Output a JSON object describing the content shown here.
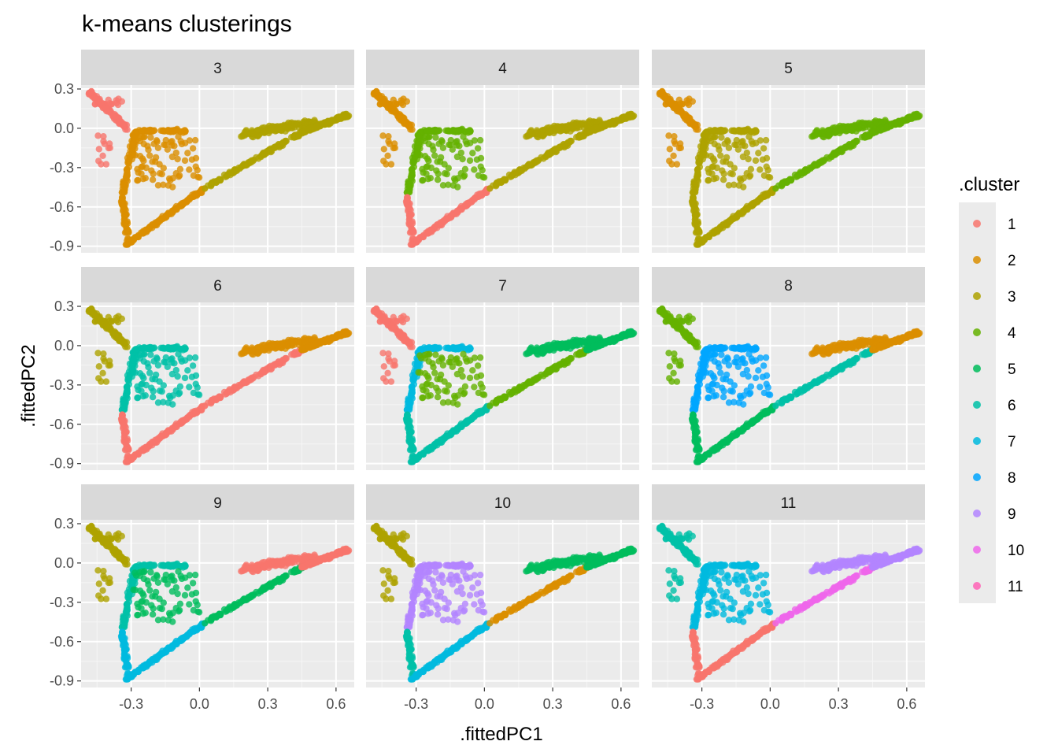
{
  "chart_data": {
    "type": "scatter",
    "title": "k-means clusterings",
    "xlabel": ".fittedPC1",
    "ylabel": ".fittedPC2",
    "xlim": [
      -0.52,
      0.68
    ],
    "ylim": [
      -0.95,
      0.33
    ],
    "x_ticks": [
      -0.3,
      0.0,
      0.3,
      0.6
    ],
    "x_tick_labels": [
      "-0.3",
      "0.0",
      "0.3",
      "0.6"
    ],
    "y_ticks": [
      0.3,
      0.0,
      -0.3,
      -0.6,
      -0.9
    ],
    "y_tick_labels": [
      "0.3",
      "0.0",
      "-0.3",
      "-0.6",
      "-0.9"
    ],
    "grid": true,
    "facets": [
      "3",
      "4",
      "5",
      "6",
      "7",
      "8",
      "9",
      "10",
      "11"
    ],
    "legend": {
      "title": ".cluster",
      "placement": "right",
      "entries": [
        "1",
        "2",
        "3",
        "4",
        "5",
        "6",
        "7",
        "8",
        "9",
        "10",
        "11"
      ],
      "colors": [
        "#F8766D",
        "#DB8E00",
        "#AEA200",
        "#64B200",
        "#00BD5C",
        "#00C1A7",
        "#00BADE",
        "#00A6FF",
        "#B385FF",
        "#EF67EB",
        "#FF63B6"
      ]
    },
    "panel_regions": [
      {
        "k": "3",
        "regions": [
          {
            "region": "arm",
            "cluster": "1"
          },
          {
            "region": "upper-left",
            "cluster": "2"
          },
          {
            "region": "lower-left",
            "cluster": "2"
          },
          {
            "region": "bottom",
            "cluster": "2"
          },
          {
            "region": "center",
            "cluster": "2"
          },
          {
            "region": "bottom-right",
            "cluster": "3"
          },
          {
            "region": "right",
            "cluster": "3"
          },
          {
            "region": "tip",
            "cluster": "3"
          }
        ]
      },
      {
        "k": "4",
        "regions": [
          {
            "region": "arm",
            "cluster": "2"
          },
          {
            "region": "upper-left",
            "cluster": "4"
          },
          {
            "region": "lower-left",
            "cluster": "1"
          },
          {
            "region": "bottom",
            "cluster": "1"
          },
          {
            "region": "center",
            "cluster": "4"
          },
          {
            "region": "bottom-right",
            "cluster": "3"
          },
          {
            "region": "right",
            "cluster": "3"
          },
          {
            "region": "tip",
            "cluster": "3"
          }
        ]
      },
      {
        "k": "5",
        "regions": [
          {
            "region": "arm",
            "cluster": "2"
          },
          {
            "region": "upper-left",
            "cluster": "3"
          },
          {
            "region": "lower-left",
            "cluster": "3"
          },
          {
            "region": "bottom",
            "cluster": "3"
          },
          {
            "region": "center",
            "cluster": "3"
          },
          {
            "region": "bottom-right",
            "cluster": "4"
          },
          {
            "region": "right",
            "cluster": "4"
          },
          {
            "region": "tip",
            "cluster": "4"
          }
        ]
      },
      {
        "k": "6",
        "regions": [
          {
            "region": "arm",
            "cluster": "3"
          },
          {
            "region": "upper-left",
            "cluster": "6"
          },
          {
            "region": "lower-left",
            "cluster": "1"
          },
          {
            "region": "bottom",
            "cluster": "1"
          },
          {
            "region": "center",
            "cluster": "6"
          },
          {
            "region": "bottom-right",
            "cluster": "1"
          },
          {
            "region": "right",
            "cluster": "2"
          },
          {
            "region": "tip",
            "cluster": "2"
          }
        ]
      },
      {
        "k": "7",
        "regions": [
          {
            "region": "arm",
            "cluster": "1"
          },
          {
            "region": "upper-left",
            "cluster": "7"
          },
          {
            "region": "lower-left",
            "cluster": "6"
          },
          {
            "region": "bottom",
            "cluster": "6"
          },
          {
            "region": "center",
            "cluster": "4"
          },
          {
            "region": "bottom-right",
            "cluster": "4"
          },
          {
            "region": "right",
            "cluster": "5"
          },
          {
            "region": "tip",
            "cluster": "5"
          }
        ]
      },
      {
        "k": "8",
        "regions": [
          {
            "region": "arm",
            "cluster": "4"
          },
          {
            "region": "upper-left",
            "cluster": "8"
          },
          {
            "region": "lower-left",
            "cluster": "5"
          },
          {
            "region": "bottom",
            "cluster": "5"
          },
          {
            "region": "center",
            "cluster": "8"
          },
          {
            "region": "bottom-right",
            "cluster": "6"
          },
          {
            "region": "right",
            "cluster": "2"
          },
          {
            "region": "tip",
            "cluster": "2"
          }
        ]
      },
      {
        "k": "9",
        "regions": [
          {
            "region": "arm",
            "cluster": "3"
          },
          {
            "region": "upper-left",
            "cluster": "6"
          },
          {
            "region": "lower-left",
            "cluster": "7"
          },
          {
            "region": "bottom",
            "cluster": "7"
          },
          {
            "region": "center",
            "cluster": "5"
          },
          {
            "region": "bottom-right",
            "cluster": "5"
          },
          {
            "region": "right",
            "cluster": "1"
          },
          {
            "region": "tip",
            "cluster": "1"
          }
        ]
      },
      {
        "k": "10",
        "regions": [
          {
            "region": "arm",
            "cluster": "3"
          },
          {
            "region": "upper-left",
            "cluster": "9"
          },
          {
            "region": "lower-left",
            "cluster": "6"
          },
          {
            "region": "bottom",
            "cluster": "7"
          },
          {
            "region": "center",
            "cluster": "9"
          },
          {
            "region": "bottom-right",
            "cluster": "2"
          },
          {
            "region": "right",
            "cluster": "5"
          },
          {
            "region": "tip",
            "cluster": "5"
          }
        ]
      },
      {
        "k": "11",
        "regions": [
          {
            "region": "arm",
            "cluster": "6"
          },
          {
            "region": "upper-left",
            "cluster": "7"
          },
          {
            "region": "lower-left",
            "cluster": "1"
          },
          {
            "region": "bottom",
            "cluster": "1"
          },
          {
            "region": "center",
            "cluster": "7"
          },
          {
            "region": "bottom-right",
            "cluster": "10"
          },
          {
            "region": "right",
            "cluster": "9"
          },
          {
            "region": "tip",
            "cluster": "9"
          }
        ]
      }
    ]
  }
}
